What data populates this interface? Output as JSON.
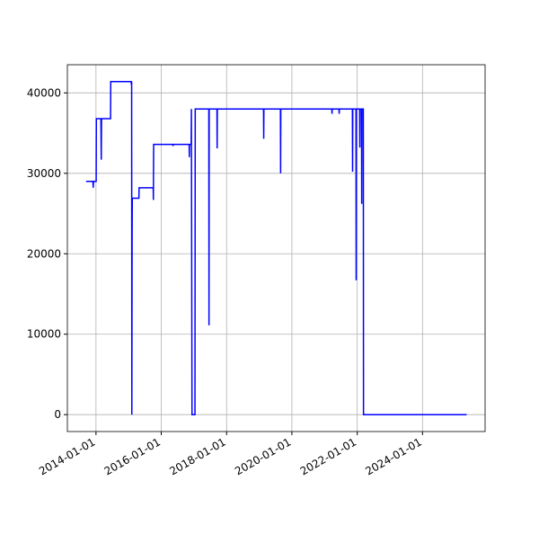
{
  "chart_data": {
    "type": "line",
    "x": [
      "2013-09-12",
      "2013-11-28",
      "2013-12-01",
      "2013-12-04",
      "2014-01-03",
      "2014-01-05",
      "2014-02-25",
      "2014-03-01",
      "2014-03-04",
      "2014-06-13",
      "2014-06-15",
      "2015-01-30",
      "2015-02-01",
      "2015-02-04",
      "2015-02-06",
      "2015-02-09",
      "2015-02-11",
      "2015-04-26",
      "2015-04-28",
      "2015-10-03",
      "2015-10-05",
      "2015-10-08",
      "2016-05-10",
      "2016-05-12",
      "2016-05-14",
      "2016-11-08",
      "2016-11-10",
      "2016-11-12",
      "2016-12-01",
      "2016-12-03",
      "2016-12-10",
      "2017-01-12",
      "2017-01-15",
      "2017-06-16",
      "2017-06-18",
      "2017-06-20",
      "2017-09-15",
      "2017-09-17",
      "2017-09-19",
      "2019-02-18",
      "2019-02-20",
      "2019-02-22",
      "2019-08-26",
      "2019-08-28",
      "2019-08-30",
      "2021-03-23",
      "2021-03-25",
      "2021-03-27",
      "2021-06-11",
      "2021-06-13",
      "2021-06-15",
      "2021-11-08",
      "2021-11-10",
      "2021-11-12",
      "2021-12-18",
      "2021-12-20",
      "2021-12-22",
      "2022-01-28",
      "2022-01-30",
      "2022-02-01",
      "2022-02-18",
      "2022-02-20",
      "2022-02-22",
      "2022-03-10",
      "2022-03-12",
      "2025-05-08"
    ],
    "series": [
      {
        "color": "#0000ff",
        "values": [
          29000,
          29000,
          28200,
          29000,
          29000,
          36800,
          36800,
          31700,
          36800,
          36800,
          41400,
          41400,
          41000,
          41400,
          0,
          22500,
          26900,
          26900,
          28200,
          28200,
          26700,
          33600,
          33600,
          33400,
          33600,
          33600,
          32000,
          33600,
          33600,
          38000,
          0,
          0,
          38000,
          38000,
          11100,
          38000,
          38000,
          33100,
          38000,
          38000,
          34300,
          38000,
          38000,
          30000,
          38000,
          38000,
          37400,
          38000,
          38000,
          37400,
          38000,
          38000,
          30200,
          38000,
          38000,
          16700,
          38000,
          38000,
          33200,
          38000,
          38000,
          26200,
          38000,
          38000,
          0,
          0
        ]
      }
    ],
    "xlim": [
      "2013-02-15",
      "2025-12-01"
    ],
    "xticks": [
      "2014-01-01",
      "2016-01-01",
      "2018-01-01",
      "2020-01-01",
      "2022-01-01",
      "2024-01-01"
    ],
    "ylim": [
      -2100,
      43500
    ],
    "yticks": [
      0,
      10000,
      20000,
      30000,
      40000
    ],
    "grid": true
  }
}
